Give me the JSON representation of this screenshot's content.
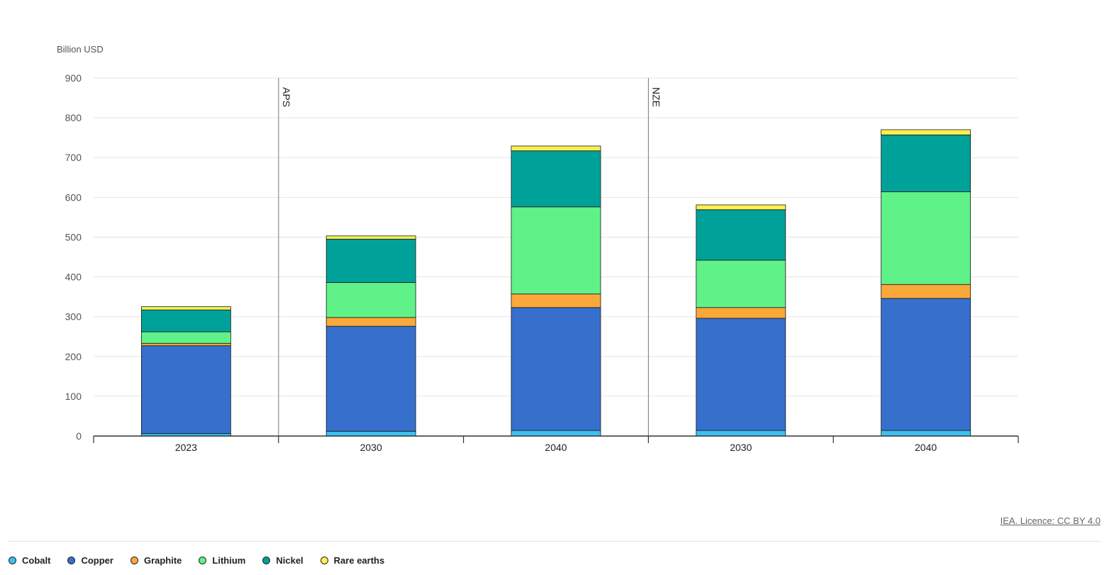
{
  "chart_data": {
    "type": "bar",
    "stacked": true,
    "unit_label": "Billion USD",
    "ylim": [
      0,
      900
    ],
    "yticks": [
      0,
      100,
      200,
      300,
      400,
      500,
      600,
      700,
      800,
      900
    ],
    "categories": [
      "2023",
      "2030",
      "2040",
      "2030",
      "2040"
    ],
    "groups": [
      {
        "label": "",
        "categories": [
          0
        ]
      },
      {
        "label": "APS",
        "categories": [
          1,
          2
        ]
      },
      {
        "label": "NZE",
        "categories": [
          3,
          4
        ]
      }
    ],
    "series": [
      {
        "name": "Cobalt",
        "color": "#3cc0ef",
        "values": [
          6,
          12,
          14,
          14,
          14
        ]
      },
      {
        "name": "Copper",
        "color": "#3670cc",
        "values": [
          221,
          264,
          309,
          282,
          332
        ]
      },
      {
        "name": "Graphite",
        "color": "#fba83a",
        "values": [
          6,
          22,
          34,
          27,
          35
        ]
      },
      {
        "name": "Lithium",
        "color": "#5ff288",
        "values": [
          29,
          88,
          219,
          119,
          233
        ]
      },
      {
        "name": "Nickel",
        "color": "#00a198",
        "values": [
          55,
          109,
          141,
          127,
          143
        ]
      },
      {
        "name": "Rare earths",
        "color": "#fcf050",
        "values": [
          8,
          8,
          12,
          12,
          13
        ]
      }
    ],
    "grid": true,
    "legend": "bottom-left"
  },
  "credit": "IEA. Licence: CC BY 4.0"
}
